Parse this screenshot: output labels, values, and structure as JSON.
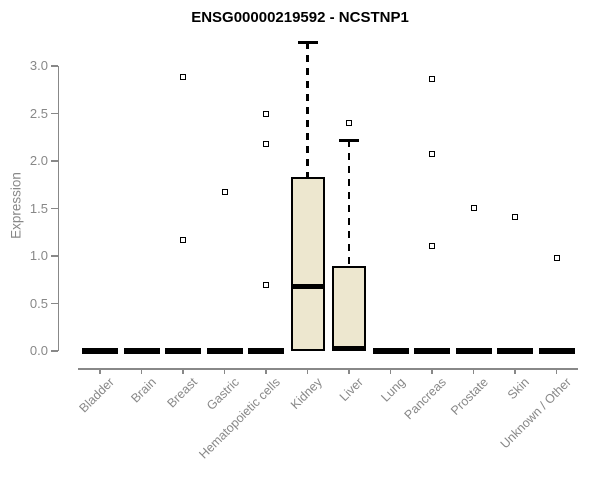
{
  "chart_data": {
    "type": "boxplot",
    "title": "ENSG00000219592 - NCSTNP1",
    "ylabel": "Expression",
    "xlabel": "",
    "ylim": [
      -0.1,
      3.4
    ],
    "yticks": [
      "0.0",
      "0.5",
      "1.0",
      "1.5",
      "2.0",
      "2.5",
      "3.0"
    ],
    "grid": false,
    "legend": null,
    "categories": [
      "Bladder",
      "Brain",
      "Breast",
      "Gastric",
      "Hematopoietic cells",
      "Kidney",
      "Liver",
      "Lung",
      "Pancreas",
      "Prostate",
      "Skin",
      "Unknown / Other"
    ],
    "boxes": [
      {
        "category": "Bladder",
        "q1": 0,
        "median": 0,
        "q3": 0,
        "whisker_low": 0,
        "whisker_high": 0,
        "outliers": []
      },
      {
        "category": "Brain",
        "q1": 0,
        "median": 0,
        "q3": 0,
        "whisker_low": 0,
        "whisker_high": 0,
        "outliers": []
      },
      {
        "category": "Breast",
        "q1": 0,
        "median": 0,
        "q3": 0,
        "whisker_low": 0,
        "whisker_high": 0,
        "outliers": [
          2.88,
          1.17
        ]
      },
      {
        "category": "Gastric",
        "q1": 0,
        "median": 0,
        "q3": 0,
        "whisker_low": 0,
        "whisker_high": 0,
        "outliers": [
          1.67
        ]
      },
      {
        "category": "Hematopoietic cells",
        "q1": 0,
        "median": 0,
        "q3": 0,
        "whisker_low": 0,
        "whisker_high": 0,
        "outliers": [
          2.49,
          2.18,
          0.7
        ]
      },
      {
        "category": "Kidney",
        "q1": 0,
        "median": 0.68,
        "q3": 1.83,
        "whisker_low": 0,
        "whisker_high": 3.25,
        "outliers": []
      },
      {
        "category": "Liver",
        "q1": 0,
        "median": 0,
        "q3": 0.89,
        "whisker_low": 0,
        "whisker_high": 2.22,
        "outliers": [
          2.4
        ]
      },
      {
        "category": "Lung",
        "q1": 0,
        "median": 0,
        "q3": 0,
        "whisker_low": 0,
        "whisker_high": 0,
        "outliers": []
      },
      {
        "category": "Pancreas",
        "q1": 0,
        "median": 0,
        "q3": 0,
        "whisker_low": 0,
        "whisker_high": 0,
        "outliers": [
          2.86,
          2.07,
          1.11
        ]
      },
      {
        "category": "Prostate",
        "q1": 0,
        "median": 0,
        "q3": 0,
        "whisker_low": 0,
        "whisker_high": 0,
        "outliers": [
          1.51
        ]
      },
      {
        "category": "Skin",
        "q1": 0,
        "median": 0,
        "q3": 0,
        "whisker_low": 0,
        "whisker_high": 0,
        "outliers": [
          1.41
        ]
      },
      {
        "category": "Unknown / Other",
        "q1": 0,
        "median": 0,
        "q3": 0,
        "whisker_low": 0,
        "whisker_high": 0,
        "outliers": [
          0.98
        ]
      }
    ],
    "colors": {
      "box_fill": "#EDE7CF",
      "box_border": "#000000",
      "axis": "#888888",
      "title_color": "#000000"
    }
  }
}
